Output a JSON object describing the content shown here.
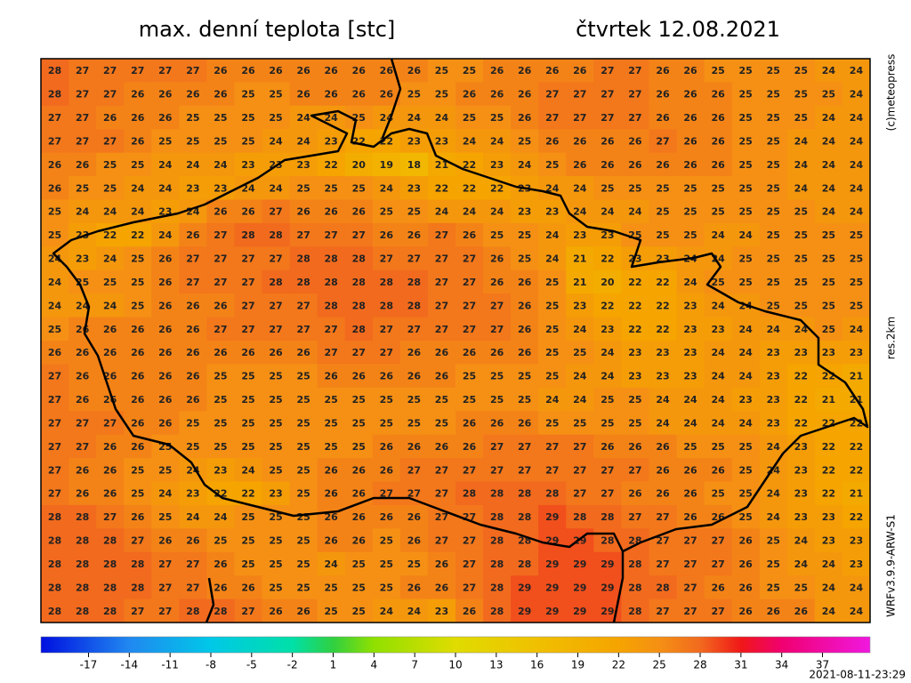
{
  "chart_data": {
    "type": "heatmap",
    "title": "max. denní teplota [stc]",
    "date": "čtvrtek 12.08.2021",
    "credit": "(c)meteopress",
    "resolution": "res.2km",
    "model": "WRFv3.9.9-ARW-S1",
    "timestamp": "2021-08-11-23:29",
    "values": [
      [
        28,
        27,
        27,
        27,
        27,
        27,
        26,
        26,
        26,
        26,
        26,
        26,
        26,
        26,
        25,
        25,
        26,
        26,
        26,
        26,
        27,
        27,
        26,
        26,
        25,
        25,
        25,
        25,
        24,
        24
      ],
      [
        28,
        27,
        27,
        26,
        26,
        26,
        26,
        25,
        25,
        26,
        26,
        26,
        26,
        25,
        25,
        26,
        26,
        26,
        27,
        27,
        27,
        27,
        26,
        26,
        26,
        25,
        25,
        25,
        25,
        24
      ],
      [
        27,
        27,
        26,
        26,
        26,
        25,
        25,
        25,
        25,
        24,
        24,
        25,
        24,
        24,
        24,
        25,
        25,
        26,
        27,
        27,
        27,
        27,
        26,
        26,
        26,
        25,
        25,
        25,
        24,
        24
      ],
      [
        27,
        27,
        27,
        26,
        25,
        25,
        25,
        25,
        24,
        24,
        23,
        22,
        22,
        23,
        23,
        24,
        24,
        25,
        26,
        26,
        26,
        26,
        27,
        26,
        26,
        25,
        25,
        24,
        24,
        24
      ],
      [
        26,
        26,
        25,
        25,
        24,
        24,
        24,
        23,
        23,
        23,
        22,
        20,
        19,
        18,
        21,
        22,
        23,
        24,
        25,
        26,
        26,
        26,
        26,
        26,
        26,
        25,
        25,
        24,
        24,
        24
      ],
      [
        26,
        25,
        25,
        24,
        24,
        23,
        23,
        24,
        24,
        25,
        25,
        25,
        24,
        23,
        22,
        22,
        22,
        23,
        24,
        24,
        25,
        25,
        25,
        25,
        25,
        25,
        25,
        24,
        24,
        24
      ],
      [
        25,
        24,
        24,
        24,
        23,
        24,
        26,
        26,
        27,
        26,
        26,
        26,
        25,
        25,
        24,
        24,
        24,
        23,
        23,
        24,
        24,
        24,
        25,
        25,
        25,
        25,
        25,
        25,
        24,
        24
      ],
      [
        25,
        23,
        22,
        22,
        24,
        26,
        27,
        28,
        28,
        27,
        27,
        27,
        26,
        26,
        27,
        26,
        25,
        25,
        24,
        23,
        23,
        25,
        25,
        25,
        24,
        24,
        25,
        25,
        25,
        25
      ],
      [
        24,
        23,
        24,
        25,
        26,
        27,
        27,
        27,
        27,
        28,
        28,
        28,
        27,
        27,
        27,
        27,
        26,
        25,
        24,
        21,
        22,
        23,
        23,
        24,
        24,
        25,
        25,
        25,
        25,
        25
      ],
      [
        24,
        25,
        25,
        25,
        26,
        27,
        27,
        27,
        28,
        28,
        28,
        28,
        28,
        28,
        27,
        27,
        26,
        26,
        25,
        21,
        20,
        22,
        22,
        24,
        25,
        25,
        25,
        25,
        25,
        25
      ],
      [
        24,
        24,
        24,
        25,
        26,
        26,
        26,
        27,
        27,
        27,
        28,
        28,
        28,
        28,
        27,
        27,
        27,
        26,
        25,
        23,
        22,
        22,
        22,
        23,
        24,
        24,
        25,
        25,
        25,
        25
      ],
      [
        25,
        26,
        26,
        26,
        26,
        26,
        27,
        27,
        27,
        27,
        27,
        28,
        27,
        27,
        27,
        27,
        27,
        26,
        25,
        24,
        23,
        22,
        22,
        23,
        23,
        24,
        24,
        24,
        25,
        24
      ],
      [
        26,
        26,
        26,
        26,
        26,
        26,
        26,
        26,
        26,
        26,
        27,
        27,
        27,
        26,
        26,
        26,
        26,
        26,
        25,
        25,
        24,
        23,
        23,
        23,
        24,
        24,
        23,
        23,
        23,
        23
      ],
      [
        27,
        26,
        26,
        26,
        26,
        26,
        25,
        25,
        25,
        25,
        26,
        26,
        26,
        26,
        26,
        25,
        25,
        25,
        25,
        24,
        24,
        23,
        23,
        23,
        24,
        24,
        23,
        22,
        22,
        21
      ],
      [
        27,
        26,
        26,
        26,
        26,
        26,
        25,
        25,
        25,
        25,
        25,
        25,
        25,
        25,
        25,
        25,
        25,
        25,
        24,
        24,
        25,
        25,
        24,
        24,
        24,
        23,
        23,
        22,
        21,
        21
      ],
      [
        27,
        27,
        27,
        26,
        26,
        25,
        25,
        25,
        25,
        25,
        25,
        25,
        25,
        25,
        25,
        26,
        26,
        26,
        25,
        25,
        25,
        25,
        24,
        24,
        24,
        24,
        23,
        22,
        22,
        22
      ],
      [
        27,
        27,
        26,
        26,
        25,
        25,
        25,
        25,
        25,
        25,
        25,
        25,
        26,
        26,
        26,
        26,
        27,
        27,
        27,
        27,
        26,
        26,
        26,
        25,
        25,
        25,
        24,
        23,
        22,
        22
      ],
      [
        27,
        26,
        26,
        25,
        25,
        24,
        23,
        24,
        25,
        25,
        26,
        26,
        26,
        27,
        27,
        27,
        27,
        27,
        27,
        27,
        27,
        27,
        26,
        26,
        26,
        25,
        24,
        23,
        22,
        22
      ],
      [
        27,
        26,
        26,
        25,
        24,
        23,
        22,
        22,
        23,
        25,
        26,
        26,
        27,
        27,
        27,
        28,
        28,
        28,
        28,
        27,
        27,
        26,
        26,
        26,
        25,
        25,
        24,
        23,
        22,
        21
      ],
      [
        28,
        28,
        27,
        26,
        25,
        24,
        24,
        25,
        25,
        25,
        26,
        26,
        26,
        26,
        27,
        27,
        28,
        28,
        29,
        28,
        28,
        27,
        27,
        26,
        26,
        25,
        24,
        23,
        23,
        22
      ],
      [
        28,
        28,
        28,
        27,
        26,
        26,
        25,
        25,
        25,
        25,
        26,
        26,
        25,
        26,
        27,
        27,
        28,
        28,
        29,
        29,
        28,
        28,
        27,
        27,
        27,
        26,
        25,
        24,
        23,
        23
      ],
      [
        28,
        28,
        28,
        28,
        27,
        27,
        26,
        25,
        25,
        25,
        24,
        25,
        25,
        25,
        26,
        27,
        28,
        28,
        29,
        29,
        29,
        28,
        27,
        27,
        27,
        26,
        25,
        24,
        24,
        23
      ],
      [
        28,
        28,
        28,
        28,
        27,
        27,
        26,
        26,
        25,
        25,
        25,
        25,
        25,
        26,
        26,
        27,
        28,
        29,
        29,
        29,
        29,
        28,
        28,
        27,
        26,
        26,
        25,
        25,
        24,
        24
      ],
      [
        28,
        28,
        28,
        27,
        27,
        28,
        28,
        27,
        26,
        26,
        25,
        25,
        24,
        24,
        23,
        26,
        28,
        29,
        29,
        29,
        29,
        28,
        27,
        27,
        27,
        26,
        26,
        26,
        24,
        24
      ]
    ],
    "colorbar": {
      "lim": [
        -20.5,
        40.5
      ],
      "ticks": [
        -17,
        -14,
        -11,
        -8,
        -5,
        -2,
        1,
        4,
        7,
        10,
        13,
        16,
        19,
        22,
        25,
        28,
        31,
        34,
        37
      ],
      "stops": [
        {
          "value": -20.5,
          "color": "#0010e0"
        },
        {
          "value": -14,
          "color": "#2088f0"
        },
        {
          "value": -8,
          "color": "#00c8e8"
        },
        {
          "value": -2,
          "color": "#00e0a8"
        },
        {
          "value": 1,
          "color": "#30d040"
        },
        {
          "value": 4,
          "color": "#90e000"
        },
        {
          "value": 10,
          "color": "#e0dc00"
        },
        {
          "value": 16,
          "color": "#f0c000"
        },
        {
          "value": 22,
          "color": "#f5a400"
        },
        {
          "value": 25,
          "color": "#f59014"
        },
        {
          "value": 28,
          "color": "#f26a1e"
        },
        {
          "value": 31,
          "color": "#f01818"
        },
        {
          "value": 34,
          "color": "#f00070"
        },
        {
          "value": 40.5,
          "color": "#f018e0"
        }
      ]
    }
  }
}
